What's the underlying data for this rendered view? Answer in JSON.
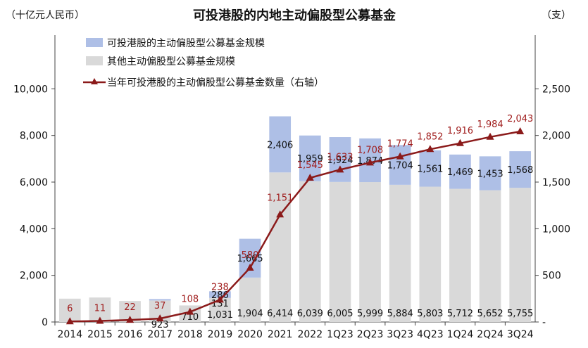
{
  "chart_data": {
    "type": "bar+line",
    "title": "可投港股的内地主动偏股型公募基金",
    "left_unit": "（十亿元人民币）",
    "right_unit": "（支）",
    "categories": [
      "2014",
      "2015",
      "2016",
      "2017",
      "2018",
      "2019",
      "2020",
      "2021",
      "2022",
      "1Q23",
      "2Q23",
      "3Q23",
      "4Q23",
      "1Q24",
      "2Q24",
      "3Q24"
    ],
    "series": [
      {
        "name": "可投港股的主动偏股型公募基金规模",
        "axis": "left",
        "kind": "bar-stack-top",
        "color": "#aebfe6",
        "values": [
          0,
          0,
          0,
          60,
          0,
          286,
          1665,
          2406,
          1959,
          1924,
          1874,
          1704,
          1561,
          1469,
          1453,
          1568
        ],
        "labels": [
          "",
          "",
          "",
          "",
          "",
          "286",
          "1,665",
          "2,406",
          "1,959",
          "1,924",
          "1,874",
          "1,704",
          "1,561",
          "1,469",
          "1,453",
          "1,568"
        ]
      },
      {
        "name": "其他主动偏股型公募基金规模",
        "axis": "left",
        "kind": "bar-stack-bottom",
        "color": "#d9d9d9",
        "values": [
          1000,
          1050,
          900,
          923,
          710,
          1031,
          1904,
          6414,
          6039,
          6005,
          5999,
          5884,
          5803,
          5712,
          5652,
          5755
        ],
        "labels": [
          "",
          "",
          "",
          "923",
          "710",
          "1,031",
          "1,904",
          "6,414",
          "6,039",
          "6,005",
          "5,999",
          "5,884",
          "5,803",
          "5,712",
          "5,652",
          "5,755"
        ]
      },
      {
        "name": "当年可投港股的主动偏股型公募基金数量（右轴）",
        "axis": "right",
        "kind": "line",
        "color": "#8b1a1a",
        "values": [
          6,
          11,
          22,
          37,
          108,
          238,
          580,
          1151,
          1545,
          1633,
          1708,
          1774,
          1852,
          1916,
          1984,
          2043
        ],
        "labels": [
          "6",
          "11",
          "22",
          "37",
          "108",
          "238",
          "580",
          "1,151",
          "1,545",
          "1,633",
          "1,708",
          "1,774",
          "1,852",
          "1,916",
          "1,984",
          "2,043"
        ]
      }
    ],
    "extra_labels": [
      {
        "category": "2019",
        "text": "131"
      }
    ],
    "left_axis": {
      "min": 0,
      "max": 12000,
      "ticks": [
        0,
        2000,
        4000,
        6000,
        8000,
        10000
      ],
      "tick_labels": [
        "0",
        "2,000",
        "4,000",
        "6,000",
        "8,000",
        "10,000"
      ]
    },
    "right_axis": {
      "min": 0,
      "max": 3000,
      "ticks": [
        0,
        500,
        1000,
        1500,
        2000,
        2500
      ],
      "tick_labels": [
        "-",
        "500",
        "1,000",
        "1,500",
        "2,000",
        "2,500"
      ]
    },
    "legend_position": "top-left",
    "grid": false
  }
}
